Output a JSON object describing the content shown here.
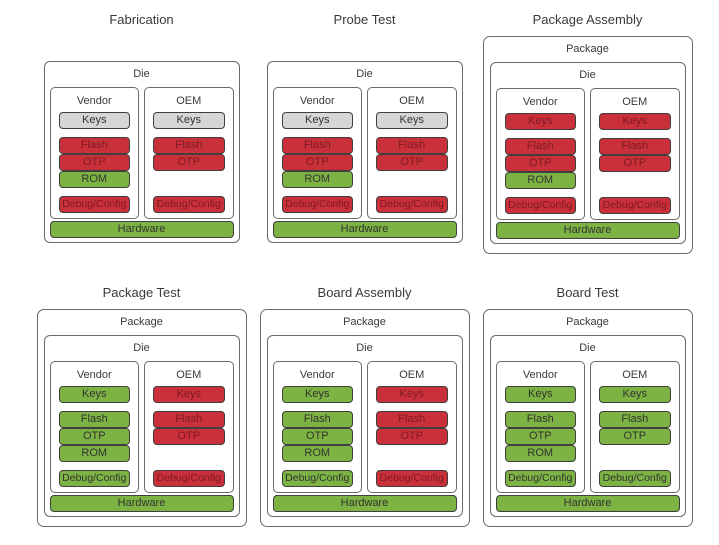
{
  "colors": {
    "red": "#c9303a",
    "green": "#7cb342",
    "gray": "#d6d6d6",
    "box_border": "#3f3f3f",
    "outer_border": "#6a6a6a",
    "label_text": "#333333",
    "red_box_text": "#7e1a23",
    "title_text": "#3a3a3a",
    "background": "#ffffff"
  },
  "labels": {
    "package": "Package",
    "die": "Die",
    "hardware": "Hardware"
  },
  "panels": [
    {
      "title": "Fabrication",
      "has_package": false,
      "hardware_status": "green",
      "columns": [
        {
          "name": "Vendor",
          "keys": {
            "label": "Keys",
            "status": "gray"
          },
          "memory": [
            {
              "label": "Flash",
              "status": "red"
            },
            {
              "label": "OTP",
              "status": "red"
            },
            {
              "label": "ROM",
              "status": "green"
            }
          ],
          "debug": {
            "label": "Debug/Config",
            "status": "red"
          }
        },
        {
          "name": "OEM",
          "keys": {
            "label": "Keys",
            "status": "gray"
          },
          "memory": [
            {
              "label": "Flash",
              "status": "red"
            },
            {
              "label": "OTP",
              "status": "red"
            }
          ],
          "debug": {
            "label": "Debug/Config",
            "status": "red"
          }
        }
      ]
    },
    {
      "title": "Probe Test",
      "has_package": false,
      "hardware_status": "green",
      "columns": [
        {
          "name": "Vendor",
          "keys": {
            "label": "Keys",
            "status": "gray"
          },
          "memory": [
            {
              "label": "Flash",
              "status": "red"
            },
            {
              "label": "OTP",
              "status": "red"
            },
            {
              "label": "ROM",
              "status": "green"
            }
          ],
          "debug": {
            "label": "Debug/Config",
            "status": "red"
          }
        },
        {
          "name": "OEM",
          "keys": {
            "label": "Keys",
            "status": "gray"
          },
          "memory": [
            {
              "label": "Flash",
              "status": "red"
            },
            {
              "label": "OTP",
              "status": "red"
            }
          ],
          "debug": {
            "label": "Debug/Config",
            "status": "red"
          }
        }
      ]
    },
    {
      "title": "Package Assembly",
      "has_package": true,
      "hardware_status": "green",
      "columns": [
        {
          "name": "Vendor",
          "keys": {
            "label": "Keys",
            "status": "red"
          },
          "memory": [
            {
              "label": "Flash",
              "status": "red"
            },
            {
              "label": "OTP",
              "status": "red"
            },
            {
              "label": "ROM",
              "status": "green"
            }
          ],
          "debug": {
            "label": "Debug/Config",
            "status": "red"
          }
        },
        {
          "name": "OEM",
          "keys": {
            "label": "Keys",
            "status": "red"
          },
          "memory": [
            {
              "label": "Flash",
              "status": "red"
            },
            {
              "label": "OTP",
              "status": "red"
            }
          ],
          "debug": {
            "label": "Debug/Config",
            "status": "red"
          }
        }
      ]
    },
    {
      "title": "Package Test",
      "has_package": true,
      "hardware_status": "green",
      "columns": [
        {
          "name": "Vendor",
          "keys": {
            "label": "Keys",
            "status": "green"
          },
          "memory": [
            {
              "label": "Flash",
              "status": "green"
            },
            {
              "label": "OTP",
              "status": "green"
            },
            {
              "label": "ROM",
              "status": "green"
            }
          ],
          "debug": {
            "label": "Debug/Config",
            "status": "green"
          }
        },
        {
          "name": "OEM",
          "keys": {
            "label": "Keys",
            "status": "red"
          },
          "memory": [
            {
              "label": "Flash",
              "status": "red"
            },
            {
              "label": "OTP",
              "status": "red"
            }
          ],
          "debug": {
            "label": "Debug/Config",
            "status": "red"
          }
        }
      ]
    },
    {
      "title": "Board Assembly",
      "has_package": true,
      "hardware_status": "green",
      "columns": [
        {
          "name": "Vendor",
          "keys": {
            "label": "Keys",
            "status": "green"
          },
          "memory": [
            {
              "label": "Flash",
              "status": "green"
            },
            {
              "label": "OTP",
              "status": "green"
            },
            {
              "label": "ROM",
              "status": "green"
            }
          ],
          "debug": {
            "label": "Debug/Config",
            "status": "green"
          }
        },
        {
          "name": "OEM",
          "keys": {
            "label": "Keys",
            "status": "red"
          },
          "memory": [
            {
              "label": "Flash",
              "status": "red"
            },
            {
              "label": "OTP",
              "status": "red"
            }
          ],
          "debug": {
            "label": "Debug/Config",
            "status": "red"
          }
        }
      ]
    },
    {
      "title": "Board Test",
      "has_package": true,
      "hardware_status": "green",
      "columns": [
        {
          "name": "Vendor",
          "keys": {
            "label": "Keys",
            "status": "green"
          },
          "memory": [
            {
              "label": "Flash",
              "status": "green"
            },
            {
              "label": "OTP",
              "status": "green"
            },
            {
              "label": "ROM",
              "status": "green"
            }
          ],
          "debug": {
            "label": "Debug/Config",
            "status": "green"
          }
        },
        {
          "name": "OEM",
          "keys": {
            "label": "Keys",
            "status": "green"
          },
          "memory": [
            {
              "label": "Flash",
              "status": "green"
            },
            {
              "label": "OTP",
              "status": "green"
            }
          ],
          "debug": {
            "label": "Debug/Config",
            "status": "green"
          }
        }
      ]
    }
  ]
}
